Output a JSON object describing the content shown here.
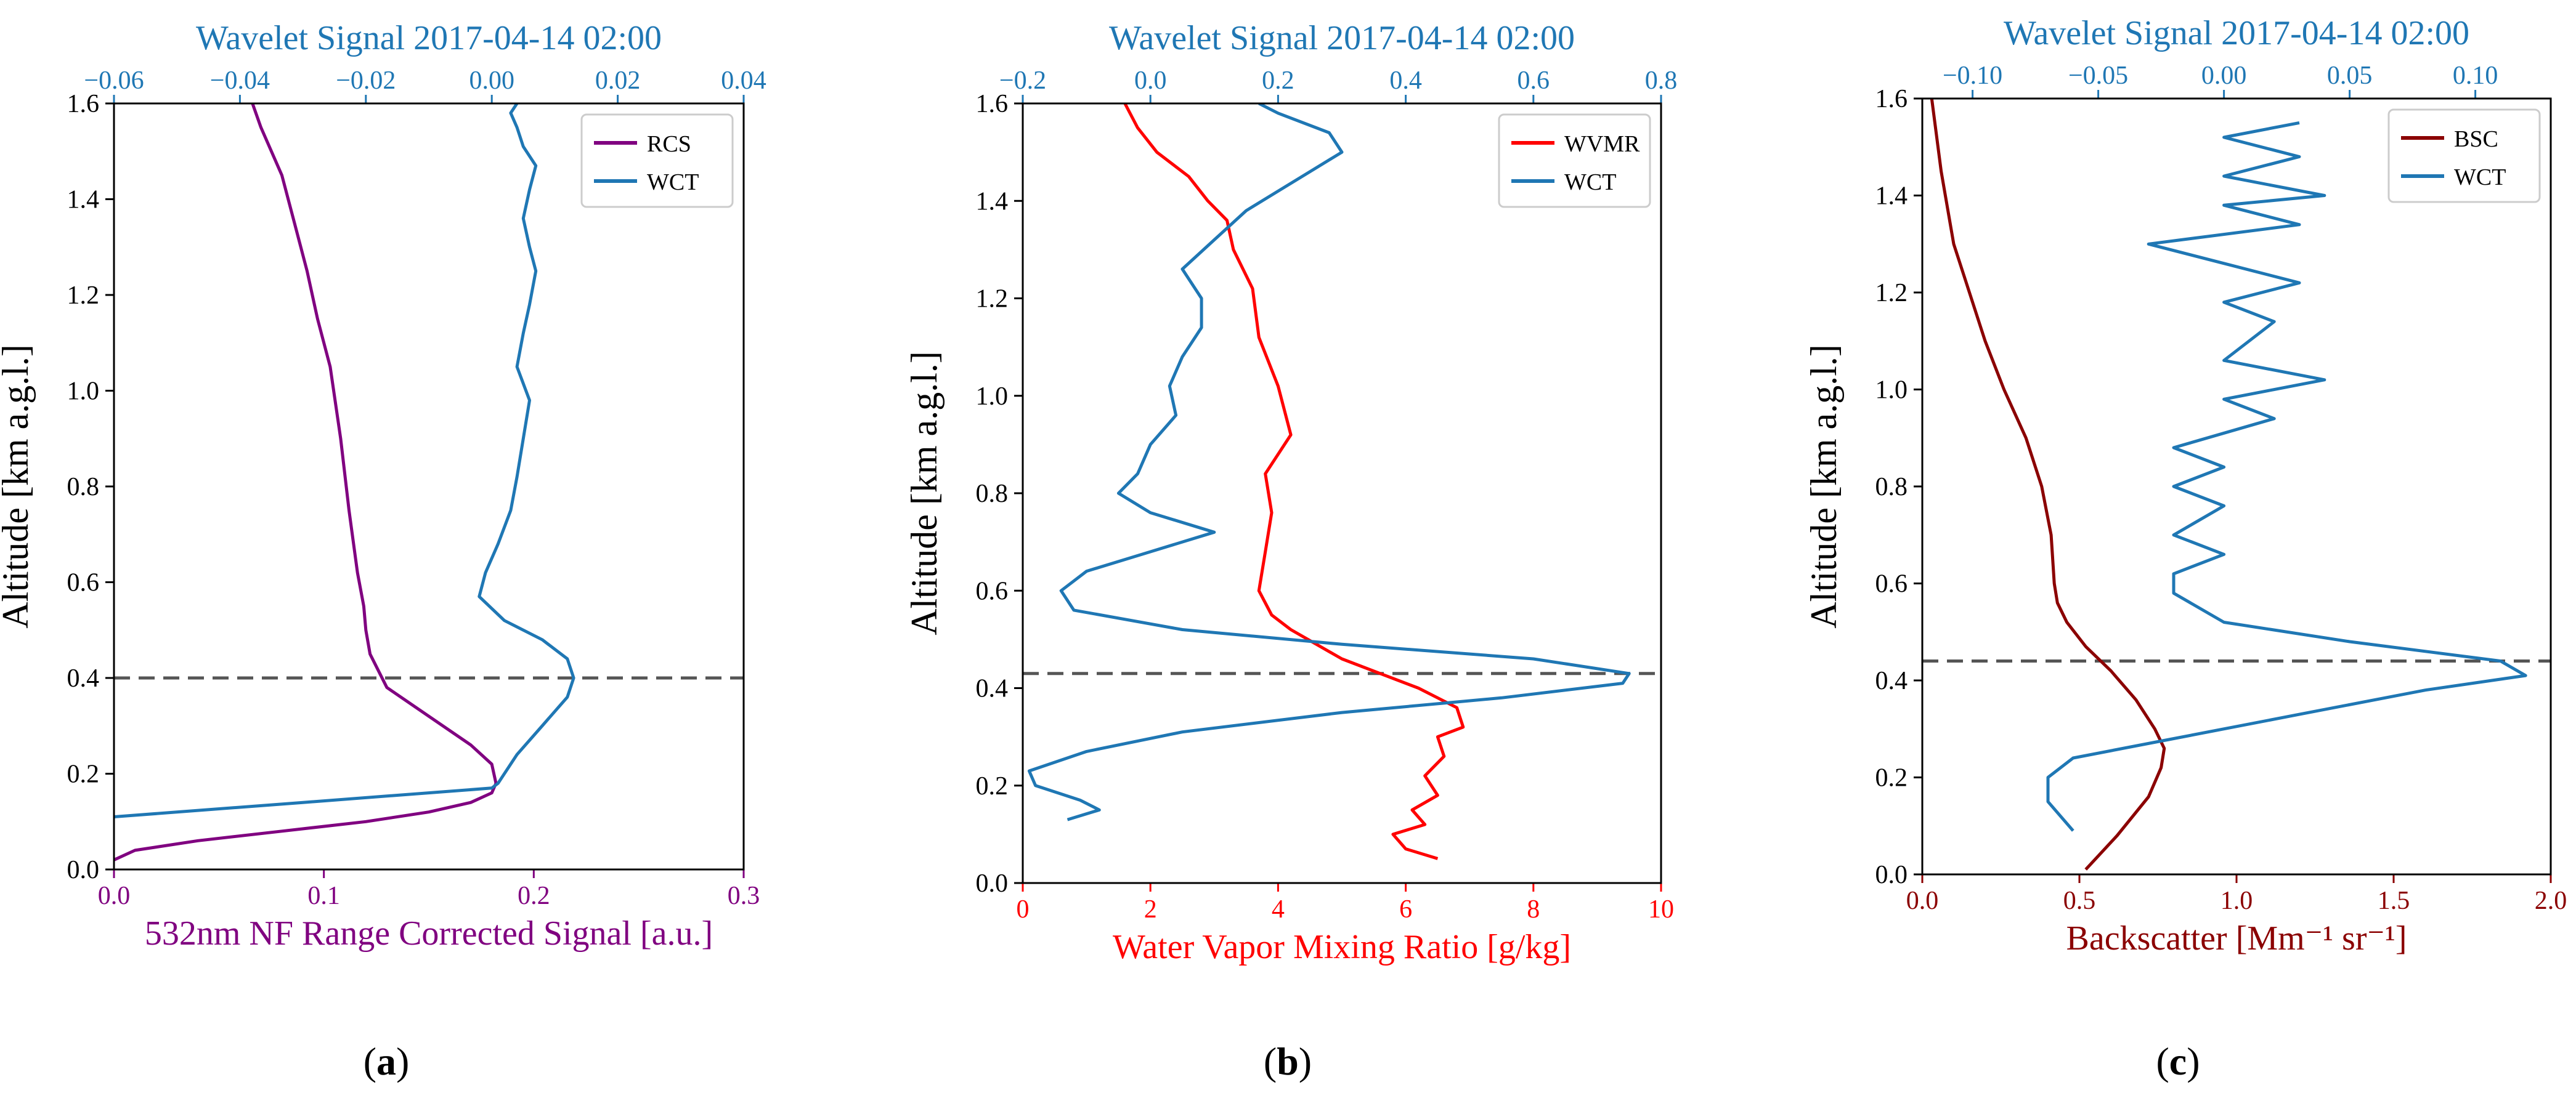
{
  "chart_data": [
    {
      "type": "line",
      "panel_label": "(a)",
      "top_title": "Wavelet Signal 2017-04-14 02:00",
      "xlabel": "532nm NF Range Corrected Signal [a.u.]",
      "ylabel": "Altitude [km a.g.l.]",
      "xlim": [
        0.0,
        0.3
      ],
      "x_ticks": [
        0.0,
        0.1,
        0.2,
        0.3
      ],
      "x_tick_labels": [
        "0.0",
        "0.1",
        "0.2",
        "0.3"
      ],
      "top_xlim": [
        -0.06,
        0.04
      ],
      "top_ticks": [
        -0.06,
        -0.04,
        -0.02,
        0.0,
        0.02,
        0.04
      ],
      "top_tick_labels": [
        "−0.06",
        "−0.04",
        "−0.02",
        "0.00",
        "0.02",
        "0.04"
      ],
      "ylim": [
        0.0,
        1.6
      ],
      "y_ticks": [
        0.0,
        0.2,
        0.4,
        0.6,
        0.8,
        1.0,
        1.2,
        1.4,
        1.6
      ],
      "y_tick_labels": [
        "0.0",
        "0.2",
        "0.4",
        "0.6",
        "0.8",
        "1.0",
        "1.2",
        "1.4",
        "1.6"
      ],
      "hline": 0.4,
      "legend_position": "top-right",
      "colors": {
        "bottom": "#800080",
        "top": "#1f77b4"
      },
      "series": [
        {
          "name": "RCS",
          "axis": "bottom",
          "color": "#800080",
          "x": [
            0.0,
            0.01,
            0.04,
            0.08,
            0.12,
            0.15,
            0.17,
            0.18,
            0.182,
            0.18,
            0.17,
            0.15,
            0.13,
            0.122,
            0.12,
            0.119,
            0.116,
            0.112,
            0.108,
            0.103,
            0.097,
            0.092,
            0.086,
            0.08,
            0.075,
            0.07,
            0.066
          ],
          "y": [
            0.02,
            0.04,
            0.06,
            0.08,
            0.1,
            0.12,
            0.14,
            0.16,
            0.18,
            0.22,
            0.26,
            0.32,
            0.38,
            0.45,
            0.5,
            0.55,
            0.62,
            0.75,
            0.9,
            1.05,
            1.15,
            1.25,
            1.35,
            1.45,
            1.5,
            1.55,
            1.6
          ]
        },
        {
          "name": "WCT",
          "axis": "top",
          "color": "#1f77b4",
          "x": [
            -0.06,
            -0.03,
            0.0,
            0.001,
            0.002,
            0.004,
            0.008,
            0.012,
            0.013,
            0.012,
            0.008,
            0.002,
            -0.002,
            -0.001,
            0.001,
            0.003,
            0.004,
            0.005,
            0.006,
            0.004,
            0.005,
            0.006,
            0.007,
            0.006,
            0.005,
            0.006,
            0.007,
            0.005,
            0.004,
            0.003,
            0.004
          ],
          "y": [
            0.11,
            0.14,
            0.17,
            0.18,
            0.2,
            0.24,
            0.3,
            0.36,
            0.4,
            0.44,
            0.48,
            0.52,
            0.57,
            0.62,
            0.68,
            0.75,
            0.82,
            0.9,
            0.98,
            1.05,
            1.12,
            1.18,
            1.25,
            1.3,
            1.36,
            1.42,
            1.47,
            1.51,
            1.55,
            1.58,
            1.6
          ]
        }
      ]
    },
    {
      "type": "line",
      "panel_label": "(b)",
      "top_title": "Wavelet Signal 2017-04-14 02:00",
      "xlabel": "Water Vapor Mixing Ratio [g/kg]",
      "ylabel": "Altitude [km a.g.l.]",
      "xlim": [
        0,
        10
      ],
      "x_ticks": [
        0,
        2,
        4,
        6,
        8,
        10
      ],
      "x_tick_labels": [
        "0",
        "2",
        "4",
        "6",
        "8",
        "10"
      ],
      "top_xlim": [
        -0.2,
        0.8
      ],
      "top_ticks": [
        -0.2,
        0.0,
        0.2,
        0.4,
        0.6,
        0.8
      ],
      "top_tick_labels": [
        "−0.2",
        "0.0",
        "0.2",
        "0.4",
        "0.6",
        "0.8"
      ],
      "ylim": [
        0.0,
        1.6
      ],
      "y_ticks": [
        0.0,
        0.2,
        0.4,
        0.6,
        0.8,
        1.0,
        1.2,
        1.4,
        1.6
      ],
      "y_tick_labels": [
        "0.0",
        "0.2",
        "0.4",
        "0.6",
        "0.8",
        "1.0",
        "1.2",
        "1.4",
        "1.6"
      ],
      "hline": 0.43,
      "legend_position": "top-right",
      "colors": {
        "bottom": "#ff0000",
        "top": "#1f77b4"
      },
      "series": [
        {
          "name": "WVMR",
          "axis": "bottom",
          "color": "#ff0000",
          "x": [
            6.5,
            6.0,
            5.8,
            6.3,
            6.1,
            6.5,
            6.3,
            6.6,
            6.5,
            6.9,
            6.8,
            6.5,
            6.2,
            5.6,
            5.0,
            4.6,
            4.2,
            3.9,
            3.7,
            3.8,
            3.9,
            3.8,
            4.2,
            4.0,
            3.7,
            3.6,
            3.3,
            3.2,
            2.9,
            2.6,
            2.1,
            1.8,
            1.6
          ],
          "y": [
            0.05,
            0.07,
            0.1,
            0.12,
            0.15,
            0.18,
            0.22,
            0.26,
            0.3,
            0.32,
            0.36,
            0.38,
            0.4,
            0.43,
            0.46,
            0.49,
            0.52,
            0.55,
            0.6,
            0.68,
            0.76,
            0.84,
            0.92,
            1.02,
            1.12,
            1.22,
            1.3,
            1.36,
            1.4,
            1.45,
            1.5,
            1.55,
            1.6
          ]
        },
        {
          "name": "WCT",
          "axis": "top",
          "color": "#1f77b4",
          "x": [
            -0.13,
            -0.08,
            -0.11,
            -0.18,
            -0.19,
            -0.1,
            0.05,
            0.3,
            0.55,
            0.74,
            0.75,
            0.6,
            0.3,
            0.05,
            -0.12,
            -0.14,
            -0.1,
            0.0,
            0.1,
            0.0,
            -0.05,
            -0.02,
            0.0,
            0.04,
            0.03,
            0.05,
            0.08,
            0.08,
            0.05,
            0.1,
            0.15,
            0.2,
            0.25,
            0.3,
            0.28,
            0.2,
            0.17
          ],
          "y": [
            0.13,
            0.15,
            0.17,
            0.2,
            0.23,
            0.27,
            0.31,
            0.35,
            0.38,
            0.41,
            0.43,
            0.46,
            0.49,
            0.52,
            0.56,
            0.6,
            0.64,
            0.68,
            0.72,
            0.76,
            0.8,
            0.84,
            0.9,
            0.96,
            1.02,
            1.08,
            1.14,
            1.2,
            1.26,
            1.32,
            1.38,
            1.42,
            1.46,
            1.5,
            1.54,
            1.58,
            1.6
          ]
        }
      ]
    },
    {
      "type": "line",
      "panel_label": "(c)",
      "top_title": "Wavelet Signal 2017-04-14 02:00",
      "xlabel": "Backscatter [Mm⁻¹ sr⁻¹]",
      "ylabel": "Altitude [km a.g.l.]",
      "xlim": [
        0.0,
        2.0
      ],
      "x_ticks": [
        0.0,
        0.5,
        1.0,
        1.5,
        2.0
      ],
      "x_tick_labels": [
        "0.0",
        "0.5",
        "1.0",
        "1.5",
        "2.0"
      ],
      "top_xlim": [
        -0.12,
        0.13
      ],
      "top_ticks": [
        -0.1,
        -0.05,
        0.0,
        0.05,
        0.1
      ],
      "top_tick_labels": [
        "−0.10",
        "−0.05",
        "0.00",
        "0.05",
        "0.10"
      ],
      "ylim": [
        0.0,
        1.6
      ],
      "y_ticks": [
        0.0,
        0.2,
        0.4,
        0.6,
        0.8,
        1.0,
        1.2,
        1.4,
        1.6
      ],
      "y_tick_labels": [
        "0.0",
        "0.2",
        "0.4",
        "0.6",
        "0.8",
        "1.0",
        "1.2",
        "1.4",
        "1.6"
      ],
      "hline": 0.44,
      "legend_position": "top-right",
      "colors": {
        "bottom": "#8b0000",
        "top": "#1f77b4"
      },
      "series": [
        {
          "name": "BSC",
          "axis": "bottom",
          "color": "#8b0000",
          "x": [
            0.52,
            0.62,
            0.72,
            0.76,
            0.77,
            0.74,
            0.68,
            0.6,
            0.52,
            0.46,
            0.43,
            0.42,
            0.41,
            0.38,
            0.33,
            0.26,
            0.2,
            0.15,
            0.1,
            0.06,
            0.03
          ],
          "y": [
            0.01,
            0.08,
            0.16,
            0.22,
            0.26,
            0.3,
            0.36,
            0.42,
            0.47,
            0.52,
            0.56,
            0.6,
            0.7,
            0.8,
            0.9,
            1.0,
            1.1,
            1.2,
            1.3,
            1.45,
            1.6
          ]
        },
        {
          "name": "WCT",
          "axis": "top",
          "color": "#1f77b4",
          "x": [
            -0.06,
            -0.07,
            -0.07,
            -0.06,
            -0.02,
            0.03,
            0.08,
            0.12,
            0.11,
            0.05,
            0.0,
            -0.02,
            -0.02,
            0.0,
            -0.02,
            0.0,
            -0.02,
            0.0,
            -0.02,
            0.02,
            0.0,
            0.04,
            0.0,
            0.02,
            0.0,
            0.03,
            -0.03,
            0.03,
            0.0,
            0.04,
            0.0,
            0.03,
            0.0,
            0.03
          ],
          "y": [
            0.09,
            0.15,
            0.2,
            0.24,
            0.28,
            0.33,
            0.38,
            0.41,
            0.44,
            0.48,
            0.52,
            0.58,
            0.62,
            0.66,
            0.7,
            0.76,
            0.8,
            0.84,
            0.88,
            0.94,
            0.98,
            1.02,
            1.06,
            1.14,
            1.18,
            1.22,
            1.3,
            1.34,
            1.38,
            1.4,
            1.44,
            1.48,
            1.52,
            1.55
          ]
        }
      ]
    }
  ]
}
